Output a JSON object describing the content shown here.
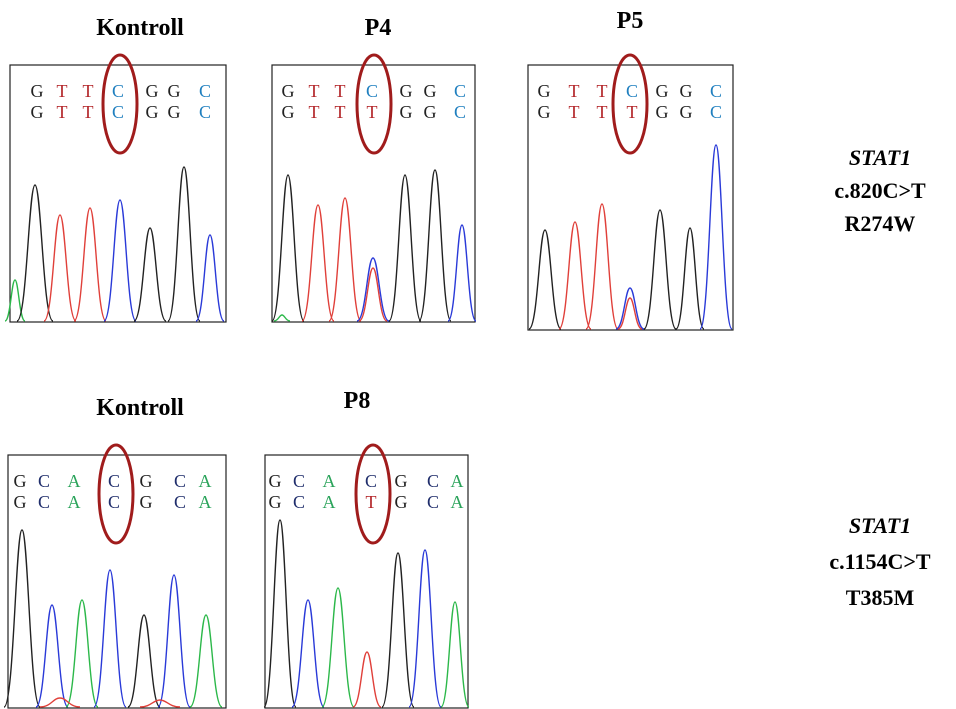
{
  "rows": [
    {
      "panels": [
        {
          "title": "Kontroll",
          "sequence_top": [
            "G",
            "T",
            "T",
            "C",
            "G",
            "G",
            "C"
          ],
          "sequence_bottom": [
            "G",
            "T",
            "T",
            "C",
            "G",
            "G",
            "C"
          ]
        },
        {
          "title": "P4",
          "sequence_top": [
            "G",
            "T",
            "T",
            "C",
            "G",
            "G",
            "C"
          ],
          "sequence_bottom": [
            "G",
            "T",
            "T",
            "T",
            "G",
            "G",
            "C"
          ]
        },
        {
          "title": "P5",
          "sequence_top": [
            "G",
            "T",
            "T",
            "C",
            "G",
            "G",
            "C"
          ],
          "sequence_bottom": [
            "G",
            "T",
            "T",
            "T",
            "G",
            "G",
            "C"
          ]
        }
      ],
      "gene": "STAT1",
      "mutation": "c.820C>T",
      "protein": "R274W"
    },
    {
      "panels": [
        {
          "title": "Kontroll",
          "sequence_top": [
            "G",
            "C",
            "A",
            "C",
            "G",
            "C",
            "A"
          ],
          "sequence_bottom": [
            "G",
            "C",
            "A",
            "C",
            "G",
            "C",
            "A"
          ]
        },
        {
          "title": "P8",
          "sequence_top": [
            "G",
            "C",
            "A",
            "C",
            "G",
            "C",
            "A"
          ],
          "sequence_bottom": [
            "G",
            "C",
            "A",
            "T",
            "G",
            "C",
            "A"
          ]
        }
      ],
      "gene": "STAT1",
      "mutation": "c.1154C>T",
      "protein": "T385M"
    }
  ]
}
